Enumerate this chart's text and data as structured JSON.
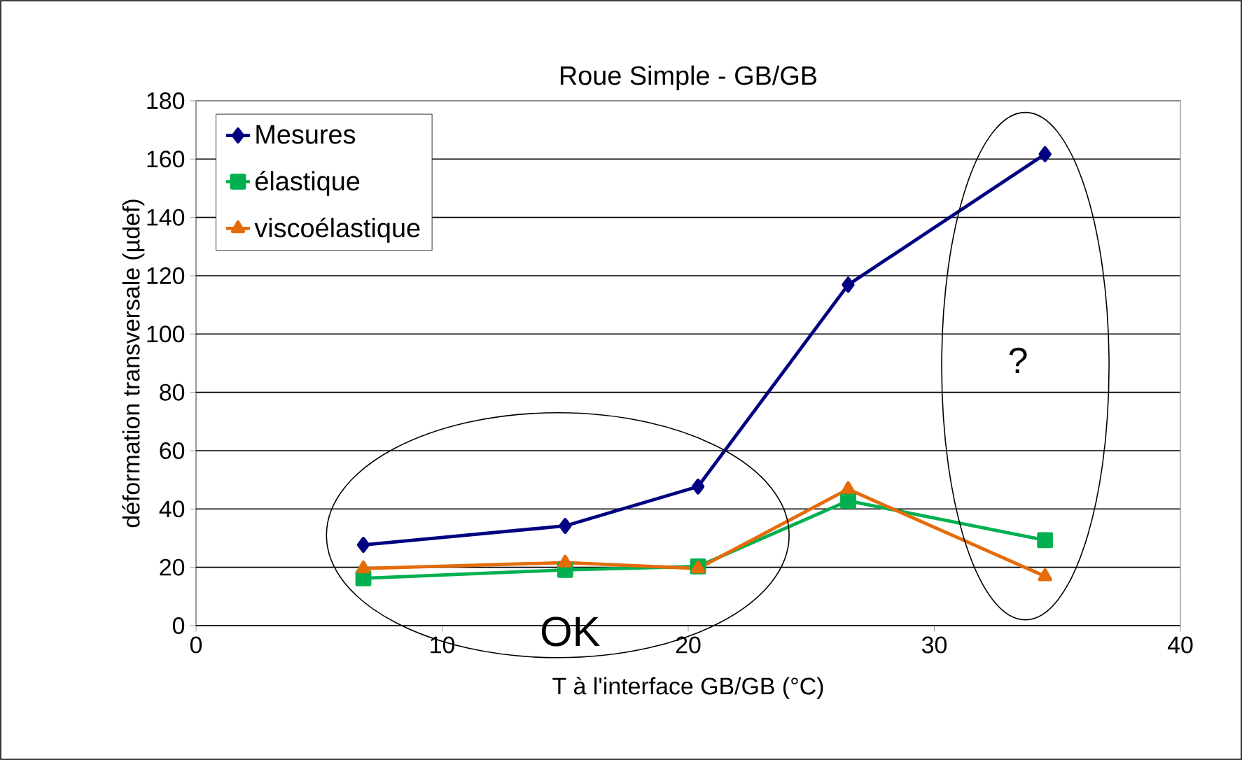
{
  "chart_data": {
    "type": "line",
    "title": "Roue Simple - GB/GB",
    "xlabel": "T à l'interface GB/GB (°C)",
    "ylabel": "déformation transversale (µdef)",
    "x": [
      6.8,
      15.0,
      20.4,
      26.5,
      34.5
    ],
    "series": [
      {
        "name": "Mesures",
        "color": "#000080",
        "marker": "diamond",
        "values": [
          27.7,
          34.2,
          47.7,
          116.9,
          161.7
        ]
      },
      {
        "name": "élastique",
        "color": "#00b050",
        "marker": "square",
        "values": [
          16.2,
          19.1,
          20.3,
          42.8,
          29.3
        ]
      },
      {
        "name": "viscoélastique",
        "color": "#e46c0a",
        "marker": "triangle",
        "values": [
          19.6,
          21.6,
          19.6,
          46.8,
          16.9
        ]
      }
    ],
    "xlim": [
      0,
      40
    ],
    "xticks": [
      0,
      10,
      20,
      30,
      40
    ],
    "ylim": [
      0,
      180
    ],
    "yticks": [
      0,
      20,
      40,
      60,
      80,
      100,
      120,
      140,
      160,
      180
    ],
    "grid": "y",
    "legend": "top left",
    "annotations": [
      "OK",
      "?"
    ]
  }
}
